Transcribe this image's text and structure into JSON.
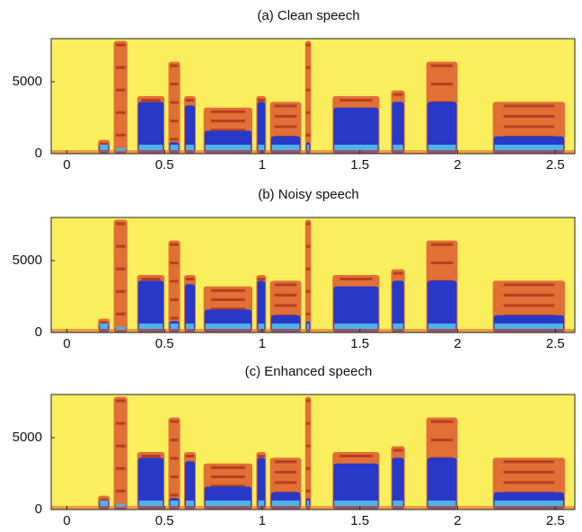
{
  "chart_data": [
    {
      "type": "spectrogram",
      "title": "(a) Clean speech",
      "xlim": [
        -0.08,
        2.6
      ],
      "ylim": [
        0,
        8000
      ],
      "xticks": [
        0,
        0.5,
        1,
        1.5,
        2,
        2.5
      ],
      "yticks": [
        0,
        5000
      ]
    },
    {
      "type": "spectrogram",
      "title": "(b) Noisy speech",
      "xlim": [
        -0.08,
        2.6
      ],
      "ylim": [
        0,
        8000
      ],
      "xticks": [
        0,
        0.5,
        1,
        1.5,
        2,
        2.5
      ],
      "yticks": [
        0,
        5000
      ]
    },
    {
      "type": "spectrogram",
      "title": "(c) Enhanced speech",
      "xlim": [
        -0.08,
        2.6
      ],
      "ylim": [
        0,
        8000
      ],
      "xticks": [
        0,
        0.5,
        1,
        1.5,
        2,
        2.5
      ],
      "yticks": [
        0,
        5000
      ]
    }
  ]
}
